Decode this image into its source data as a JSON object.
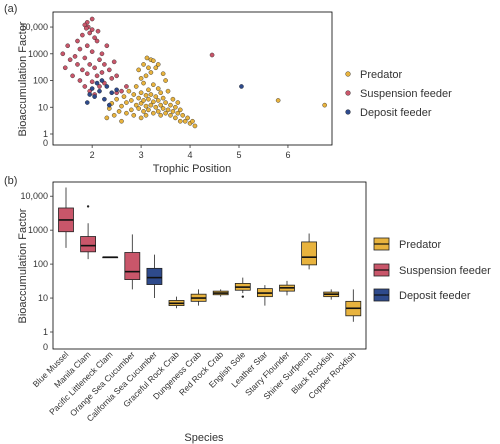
{
  "colors": {
    "predator": "#e8b33e",
    "suspension": "#c9566a",
    "deposit": "#2e4a8c",
    "stroke": "#222222"
  },
  "chart_data": [
    {
      "type": "scatter",
      "panel_label": "(a)",
      "xlabel": "Trophic Position",
      "ylabel": "Bioaccumulation Factor",
      "y_scale": "log",
      "xlim": [
        1.2,
        6.9
      ],
      "ylim": [
        1,
        20000
      ],
      "x_ticks": [
        {
          "value": 2,
          "label": "2"
        },
        {
          "value": 3,
          "label": "3"
        },
        {
          "value": 4,
          "label": "4"
        },
        {
          "value": 5,
          "label": "5"
        },
        {
          "value": 6,
          "label": "6"
        }
      ],
      "y_ticks": [
        {
          "value": 1,
          "label": "1"
        },
        {
          "value": 10,
          "label": "10"
        },
        {
          "value": 100,
          "label": "100"
        },
        {
          "value": 1000,
          "label": "1000"
        },
        {
          "value": 10000,
          "label": "10,000"
        }
      ],
      "y_zero_label": "0",
      "legend_position": "right",
      "series": [
        {
          "name": "Predator",
          "points": [
            [
              2.3,
              4
            ],
            [
              2.35,
              9
            ],
            [
              2.4,
              14
            ],
            [
              2.45,
              5
            ],
            [
              2.5,
              20
            ],
            [
              2.55,
              7
            ],
            [
              2.6,
              3
            ],
            [
              2.6,
              11
            ],
            [
              2.65,
              25
            ],
            [
              2.7,
              6
            ],
            [
              2.7,
              15
            ],
            [
              2.75,
              40
            ],
            [
              2.8,
              8
            ],
            [
              2.8,
              18
            ],
            [
              2.85,
              5
            ],
            [
              2.85,
              30
            ],
            [
              2.9,
              12
            ],
            [
              2.9,
              60
            ],
            [
              2.95,
              9
            ],
            [
              2.95,
              22
            ],
            [
              3.0,
              4
            ],
            [
              3.0,
              14
            ],
            [
              3.0,
              35
            ],
            [
              3.0,
              120
            ],
            [
              3.05,
              7
            ],
            [
              3.05,
              18
            ],
            [
              3.05,
              80
            ],
            [
              3.1,
              5
            ],
            [
              3.1,
              11
            ],
            [
              3.1,
              28
            ],
            [
              3.1,
              150
            ],
            [
              3.15,
              8
            ],
            [
              3.15,
              20
            ],
            [
              3.15,
              45
            ],
            [
              3.2,
              12
            ],
            [
              3.2,
              30
            ],
            [
              3.2,
              200
            ],
            [
              3.2,
              600
            ],
            [
              3.25,
              6
            ],
            [
              3.25,
              16
            ],
            [
              3.25,
              70
            ],
            [
              3.3,
              10
            ],
            [
              3.3,
              25
            ],
            [
              3.3,
              300
            ],
            [
              3.35,
              7
            ],
            [
              3.35,
              18
            ],
            [
              3.35,
              50
            ],
            [
              3.4,
              5
            ],
            [
              3.4,
              12
            ],
            [
              3.4,
              35
            ],
            [
              3.45,
              9
            ],
            [
              3.45,
              22
            ],
            [
              3.5,
              6
            ],
            [
              3.5,
              15
            ],
            [
              3.5,
              100
            ],
            [
              3.55,
              8
            ],
            [
              3.55,
              40
            ],
            [
              3.6,
              5
            ],
            [
              3.6,
              12
            ],
            [
              3.65,
              7
            ],
            [
              3.65,
              20
            ],
            [
              3.7,
              4
            ],
            [
              3.7,
              10
            ],
            [
              3.75,
              6
            ],
            [
              3.75,
              15
            ],
            [
              3.8,
              3
            ],
            [
              3.8,
              8
            ],
            [
              3.85,
              5
            ],
            [
              3.9,
              3
            ],
            [
              3.95,
              4
            ],
            [
              4.0,
              2.5
            ],
            [
              4.05,
              3
            ],
            [
              4.1,
              2
            ],
            [
              3.12,
              700
            ],
            [
              3.25,
              550
            ],
            [
              3.05,
              400
            ],
            [
              2.95,
              250
            ],
            [
              3.35,
              400
            ],
            [
              3.45,
              180
            ],
            [
              3.15,
              300
            ],
            [
              5.8,
              18
            ],
            [
              6.75,
              12
            ]
          ]
        },
        {
          "name": "Suspension feeder",
          "points": [
            [
              1.4,
              1000
            ],
            [
              1.45,
              300
            ],
            [
              1.5,
              2000
            ],
            [
              1.55,
              600
            ],
            [
              1.6,
              150
            ],
            [
              1.65,
              800
            ],
            [
              1.7,
              3000
            ],
            [
              1.7,
              400
            ],
            [
              1.75,
              100
            ],
            [
              1.75,
              1500
            ],
            [
              1.8,
              250
            ],
            [
              1.8,
              5000
            ],
            [
              1.85,
              700
            ],
            [
              1.85,
              60
            ],
            [
              1.9,
              2000
            ],
            [
              1.9,
              180
            ],
            [
              1.9,
              15000
            ],
            [
              1.95,
              400
            ],
            [
              1.95,
              40
            ],
            [
              2.0,
              1200
            ],
            [
              2.0,
              90
            ],
            [
              2.0,
              8000
            ],
            [
              2.05,
              300
            ],
            [
              2.05,
              30
            ],
            [
              2.1,
              3000
            ],
            [
              2.1,
              150
            ],
            [
              2.15,
              600
            ],
            [
              2.15,
              60
            ],
            [
              2.2,
              1000
            ],
            [
              2.2,
              200
            ],
            [
              2.25,
              400
            ],
            [
              2.25,
              80
            ],
            [
              2.3,
              2000
            ],
            [
              2.35,
              250
            ],
            [
              2.4,
              120
            ],
            [
              2.45,
              500
            ],
            [
              2.5,
              150
            ],
            [
              1.85,
              12000
            ],
            [
              1.95,
              6000
            ],
            [
              2.05,
              4000
            ],
            [
              1.92,
              10000
            ],
            [
              2.12,
              7000
            ],
            [
              1.88,
              9000
            ],
            [
              2.0,
              20000
            ],
            [
              2.5,
              35
            ],
            [
              2.6,
              40
            ],
            [
              2.7,
              60
            ],
            [
              4.45,
              900
            ]
          ]
        },
        {
          "name": "Deposit feeder",
          "points": [
            [
              1.9,
              15
            ],
            [
              1.95,
              30
            ],
            [
              2.0,
              50
            ],
            [
              2.05,
              25
            ],
            [
              2.1,
              80
            ],
            [
              2.15,
              40
            ],
            [
              2.2,
              100
            ],
            [
              2.25,
              20
            ],
            [
              2.3,
              60
            ],
            [
              2.35,
              12
            ],
            [
              2.4,
              35
            ],
            [
              2.5,
              45
            ],
            [
              5.05,
              60
            ]
          ]
        }
      ]
    },
    {
      "type": "box",
      "panel_label": "(b)",
      "xlabel": "Species",
      "ylabel": "Bioaccumulation Factor",
      "y_scale": "log",
      "ylim": [
        1,
        20000
      ],
      "y_ticks": [
        {
          "value": 1,
          "label": "1"
        },
        {
          "value": 10,
          "label": "10"
        },
        {
          "value": 100,
          "label": "100"
        },
        {
          "value": 1000,
          "label": "1000"
        },
        {
          "value": 10000,
          "label": "10,000"
        }
      ],
      "y_zero_label": "0",
      "legend_position": "right",
      "legend": [
        "Predator",
        "Suspension feeder",
        "Deposit feeder"
      ],
      "categories": [
        {
          "name": "Blue Mussel",
          "group": "Suspension feeder",
          "min": 300,
          "q1": 900,
          "median": 2000,
          "q3": 4500,
          "max": 18000,
          "outliers": []
        },
        {
          "name": "Manila Clam",
          "group": "Suspension feeder",
          "min": 140,
          "q1": 230,
          "median": 350,
          "q3": 650,
          "max": 1600,
          "outliers": [
            5000
          ]
        },
        {
          "name": "Pacific Littleneck Clam",
          "group": "Suspension feeder",
          "min": 160,
          "q1": 160,
          "median": 160,
          "q3": 160,
          "max": 160,
          "outliers": []
        },
        {
          "name": "Orange Sea Cucumber",
          "group": "Suspension feeder",
          "min": 18,
          "q1": 35,
          "median": 60,
          "q3": 220,
          "max": 750,
          "outliers": []
        },
        {
          "name": "California Sea Cucumber",
          "group": "Deposit feeder",
          "min": 10,
          "q1": 25,
          "median": 40,
          "q3": 75,
          "max": 190,
          "outliers": []
        },
        {
          "name": "Graceful Rock Crab",
          "group": "Predator",
          "min": 5,
          "q1": 6,
          "median": 7,
          "q3": 8.5,
          "max": 11,
          "outliers": []
        },
        {
          "name": "Dungeness Crab",
          "group": "Predator",
          "min": 6,
          "q1": 8,
          "median": 10,
          "q3": 13,
          "max": 18,
          "outliers": []
        },
        {
          "name": "Red Rock Crab",
          "group": "Predator",
          "min": 11,
          "q1": 12.5,
          "median": 14,
          "q3": 16,
          "max": 18,
          "outliers": []
        },
        {
          "name": "English Sole",
          "group": "Predator",
          "min": 14,
          "q1": 17,
          "median": 21,
          "q3": 27,
          "max": 40,
          "outliers": [
            11
          ]
        },
        {
          "name": "Leather Star",
          "group": "Predator",
          "min": 6,
          "q1": 11,
          "median": 14,
          "q3": 19,
          "max": 24,
          "outliers": []
        },
        {
          "name": "Starry Flounder",
          "group": "Predator",
          "min": 12,
          "q1": 16,
          "median": 20,
          "q3": 24,
          "max": 32,
          "outliers": []
        },
        {
          "name": "Shiner Surfperch",
          "group": "Predator",
          "min": 70,
          "q1": 95,
          "median": 160,
          "q3": 450,
          "max": 800,
          "outliers": []
        },
        {
          "name": "Black Rockfish",
          "group": "Predator",
          "min": 9,
          "q1": 11,
          "median": 13,
          "q3": 15,
          "max": 18,
          "outliers": []
        },
        {
          "name": "Copper Rockfish",
          "group": "Predator",
          "min": 2,
          "q1": 3,
          "median": 5,
          "q3": 8,
          "max": 18,
          "outliers": []
        }
      ]
    }
  ]
}
